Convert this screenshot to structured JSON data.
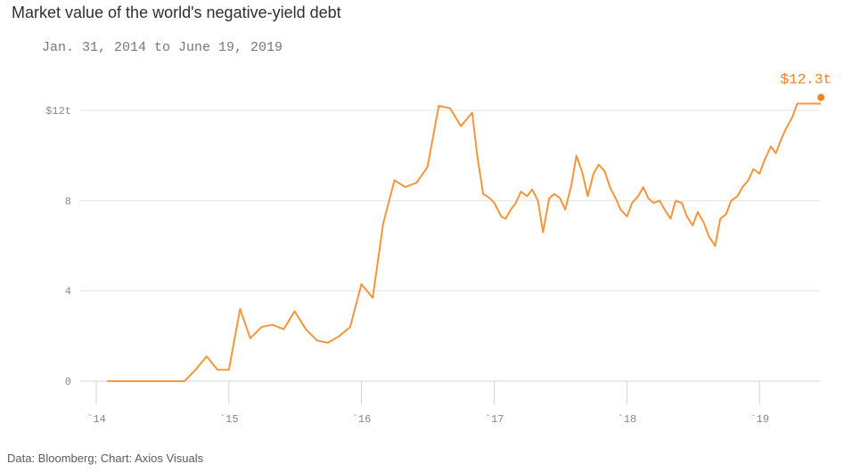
{
  "header": {
    "title": "Market value of the world's negative-yield debt",
    "subtitle": "Jan. 31, 2014 to June 19, 2019"
  },
  "footer": {
    "source": "Data: Bloomberg; Chart: Axios Visuals"
  },
  "chart_data": {
    "type": "line",
    "title": "Market value of the world's negative-yield debt",
    "subtitle": "Jan. 31, 2014 to June 19, 2019",
    "xlabel": "",
    "ylabel": "",
    "unit": "trillion USD",
    "xlim": [
      "2014-01-31",
      "2019-06-19"
    ],
    "ylim": [
      0,
      12
    ],
    "y_ticks": [
      0,
      4,
      8,
      12
    ],
    "y_tick_labels": [
      "0",
      "4",
      "8",
      "$12t"
    ],
    "x_ticks": [
      "2014-01-01",
      "2015-01-01",
      "2016-01-01",
      "2017-01-01",
      "2018-01-01",
      "2019-01-01"
    ],
    "x_tick_labels": [
      "`14",
      "`15",
      "`16",
      "`17",
      "`18",
      "`19"
    ],
    "grid": true,
    "color": "#f7953b",
    "end_annotation": "$12.3t",
    "series": [
      {
        "x": [
          "2014-01-31",
          "2014-03-01",
          "2014-04-01",
          "2014-05-01",
          "2014-06-01",
          "2014-07-01",
          "2014-08-01",
          "2014-09-01",
          "2014-10-01",
          "2014-11-01",
          "2014-12-01",
          "2015-01-01",
          "2015-02-01",
          "2015-03-01",
          "2015-04-01",
          "2015-05-01",
          "2015-06-01",
          "2015-07-01",
          "2015-08-01",
          "2015-09-01",
          "2015-10-01",
          "2015-11-01",
          "2015-12-01",
          "2016-01-01",
          "2016-02-01",
          "2016-03-01",
          "2016-04-01",
          "2016-05-01",
          "2016-06-01",
          "2016-07-01",
          "2016-08-01",
          "2016-09-01",
          "2016-10-01",
          "2016-11-01",
          "2016-11-15",
          "2016-12-01",
          "2016-12-20",
          "2017-01-01",
          "2017-01-10",
          "2017-01-20",
          "2017-02-01",
          "2017-02-15",
          "2017-03-01",
          "2017-03-15",
          "2017-04-01",
          "2017-04-15",
          "2017-05-01",
          "2017-05-15",
          "2017-06-01",
          "2017-06-15",
          "2017-07-01",
          "2017-07-15",
          "2017-08-01",
          "2017-08-15",
          "2017-09-01",
          "2017-09-15",
          "2017-10-01",
          "2017-10-15",
          "2017-11-01",
          "2017-11-15",
          "2017-12-01",
          "2017-12-15",
          "2018-01-01",
          "2018-01-15",
          "2018-02-01",
          "2018-02-15",
          "2018-03-01",
          "2018-03-15",
          "2018-04-01",
          "2018-04-15",
          "2018-05-01",
          "2018-05-15",
          "2018-06-01",
          "2018-06-15",
          "2018-07-01",
          "2018-07-15",
          "2018-08-01",
          "2018-08-15",
          "2018-09-01",
          "2018-09-15",
          "2018-10-01",
          "2018-10-15",
          "2018-11-01",
          "2018-11-15",
          "2018-12-01",
          "2018-12-15",
          "2019-01-01",
          "2019-01-15",
          "2019-02-01",
          "2019-02-15",
          "2019-03-01",
          "2019-03-15",
          "2019-04-01",
          "2019-04-15",
          "2019-05-01",
          "2019-05-15",
          "2019-06-01",
          "2019-06-19"
        ],
        "values": [
          0,
          0,
          0,
          0,
          0,
          0,
          0,
          0,
          0.5,
          1.1,
          0.5,
          0.5,
          3.2,
          1.9,
          2.4,
          2.5,
          2.3,
          3.1,
          2.3,
          1.8,
          1.7,
          2.0,
          2.4,
          4.3,
          3.7,
          7.0,
          8.9,
          8.6,
          8.8,
          9.5,
          12.2,
          12.1,
          11.3,
          11.9,
          10.0,
          8.3,
          8.1,
          7.9,
          7.6,
          7.3,
          7.2,
          7.6,
          7.9,
          8.4,
          8.2,
          8.5,
          8.0,
          6.6,
          8.1,
          8.3,
          8.1,
          7.6,
          8.7,
          10.0,
          9.2,
          8.2,
          9.2,
          9.6,
          9.3,
          8.6,
          8.1,
          7.6,
          7.3,
          7.9,
          8.2,
          8.6,
          8.1,
          7.9,
          8.0,
          7.6,
          7.2,
          8.0,
          7.9,
          7.3,
          6.9,
          7.5,
          7.0,
          6.4,
          6.0,
          7.2,
          7.4,
          8.0,
          8.2,
          8.6,
          8.9,
          9.4,
          9.2,
          9.8,
          10.4,
          10.1,
          10.7,
          11.2,
          11.7,
          12.3,
          12.3,
          12.3,
          12.3,
          12.3
        ]
      }
    ]
  }
}
